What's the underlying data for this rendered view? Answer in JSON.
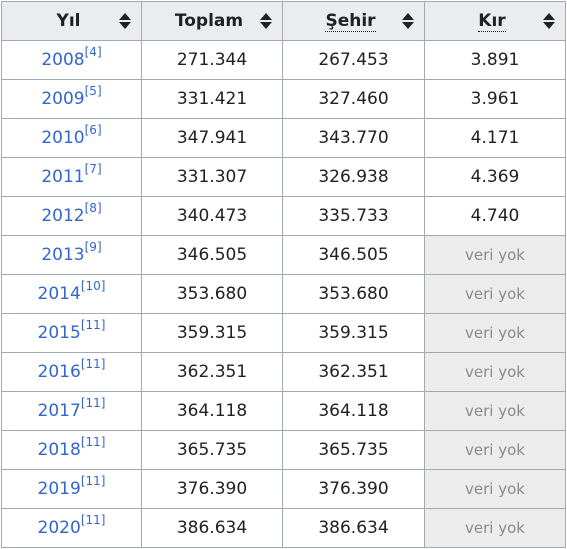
{
  "headers": [
    {
      "label": "Yıl"
    },
    {
      "label": "Toplam"
    },
    {
      "label": "Şehir"
    },
    {
      "label": "Kır"
    }
  ],
  "rows": [
    {
      "year": "2008",
      "ref": "[4]",
      "total": "271.344",
      "urban": "267.453",
      "rural": "3.891"
    },
    {
      "year": "2009",
      "ref": "[5]",
      "total": "331.421",
      "urban": "327.460",
      "rural": "3.961"
    },
    {
      "year": "2010",
      "ref": "[6]",
      "total": "347.941",
      "urban": "343.770",
      "rural": "4.171"
    },
    {
      "year": "2011",
      "ref": "[7]",
      "total": "331.307",
      "urban": "326.938",
      "rural": "4.369"
    },
    {
      "year": "2012",
      "ref": "[8]",
      "total": "340.473",
      "urban": "335.733",
      "rural": "4.740"
    },
    {
      "year": "2013",
      "ref": "[9]",
      "total": "346.505",
      "urban": "346.505",
      "rural": "veri yok"
    },
    {
      "year": "2014",
      "ref": "[10]",
      "total": "353.680",
      "urban": "353.680",
      "rural": "veri yok"
    },
    {
      "year": "2015",
      "ref": "[11]",
      "total": "359.315",
      "urban": "359.315",
      "rural": "veri yok"
    },
    {
      "year": "2016",
      "ref": "[11]",
      "total": "362.351",
      "urban": "362.351",
      "rural": "veri yok"
    },
    {
      "year": "2017",
      "ref": "[11]",
      "total": "364.118",
      "urban": "364.118",
      "rural": "veri yok"
    },
    {
      "year": "2018",
      "ref": "[11]",
      "total": "365.735",
      "urban": "365.735",
      "rural": "veri yok"
    },
    {
      "year": "2019",
      "ref": "[11]",
      "total": "376.390",
      "urban": "376.390",
      "rural": "veri yok"
    },
    {
      "year": "2020",
      "ref": "[11]",
      "total": "386.634",
      "urban": "386.634",
      "rural": "veri yok"
    }
  ],
  "colors": {
    "link": "#3366cc",
    "header_bg": "#eaecf0",
    "border": "#a2a9b1",
    "nodata_bg": "#ececec",
    "nodata_text": "#8a8a8a"
  },
  "icons": {
    "sort": "sort-arrows-icon"
  }
}
